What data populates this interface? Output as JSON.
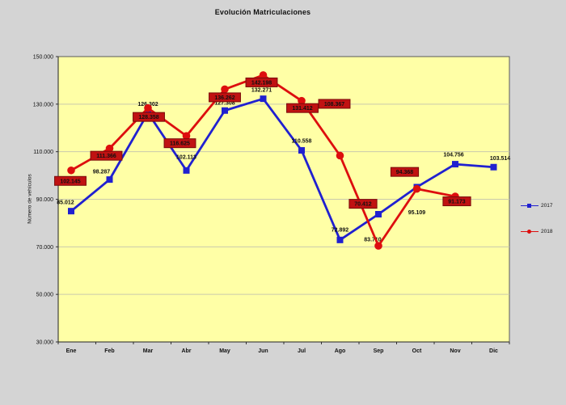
{
  "chart_data": {
    "type": "line",
    "title": "Evolución Matriculaciones",
    "ylabel": "Número de vehículos",
    "xlabel": "",
    "ylim": [
      30000,
      150000
    ],
    "y_tick_step": 20000,
    "y_tick_labels": [
      "150.000",
      "130.000",
      "110.000",
      "90.000",
      "70.000",
      "50.000",
      "30.000"
    ],
    "grid": true,
    "plot_bg": "#ffffa6",
    "gridline_color": "#c9c9ad",
    "legend_position": "right",
    "categories": [
      "Ene",
      "Feb",
      "Mar",
      "Abr",
      "May",
      "Jun",
      "Jul",
      "Ago",
      "Sep",
      "Oct",
      "Nov",
      "Dic"
    ],
    "series": [
      {
        "name": "2017",
        "color": "#2020d0",
        "marker": "square",
        "label_style": "plain",
        "values": [
          85012,
          98287,
          126302,
          102113,
          127308,
          132271,
          110558,
          72892,
          83710,
          95109,
          104756,
          103514
        ],
        "labels": [
          "85.012",
          "98.287",
          "126.302",
          "102.113",
          "127.308",
          "132.271",
          "110.558",
          "72.892",
          "83.710",
          "95.109",
          "104.756",
          "103.514"
        ],
        "label_offsets": [
          [
            -7,
            -11
          ],
          [
            -10,
            -10
          ],
          [
            0,
            -11
          ],
          [
            0,
            -17
          ],
          [
            0,
            -10
          ],
          [
            -2,
            -11
          ],
          [
            0,
            -12
          ],
          [
            0,
            -13
          ],
          [
            -7,
            31
          ],
          [
            0,
            31
          ],
          [
            -2,
            -12
          ],
          [
            8,
            -11
          ]
        ]
      },
      {
        "name": "2018",
        "color": "#dd0e0e",
        "marker": "circle",
        "label_style": "boxed",
        "label_box_color": "#c01212",
        "label_box_border": "#7a0a0a",
        "values": [
          102145,
          111366,
          128358,
          116625,
          136262,
          142198,
          131412,
          108367,
          70412,
          94368,
          91173,
          null
        ],
        "labels": [
          "102.145",
          "111.366",
          "128.358",
          "116.625",
          "136.262",
          "142.198",
          "131.412",
          "108.367",
          "70.412",
          "94.368",
          "91.173",
          ""
        ],
        "label_offsets": [
          [
            -1,
            13
          ],
          [
            -4,
            9
          ],
          [
            1,
            11
          ],
          [
            -8,
            9
          ],
          [
            0,
            10
          ],
          [
            -2,
            9
          ],
          [
            1,
            9
          ],
          [
            -7,
            -64
          ],
          [
            -19,
            -52
          ],
          [
            -15,
            -21
          ],
          [
            2,
            6
          ],
          [
            0,
            0
          ]
        ]
      }
    ],
    "legend": [
      {
        "label": "2017",
        "color": "#2020d0",
        "marker": "square"
      },
      {
        "label": "2018",
        "color": "#dd0e0e",
        "marker": "circle"
      }
    ]
  }
}
